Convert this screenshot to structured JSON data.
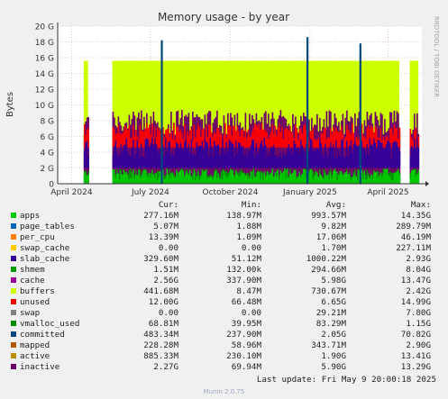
{
  "chart_data": {
    "type": "area",
    "title": "Memory usage - by year",
    "ylabel": "Bytes",
    "side_label": "RRDTOOL / TOBI OETIKER",
    "ylim": [
      0,
      20
    ],
    "y_ticks": [
      {
        "value": 0,
        "label": "0"
      },
      {
        "value": 2,
        "label": "2 G"
      },
      {
        "value": 4,
        "label": "4 G"
      },
      {
        "value": 6,
        "label": "6 G"
      },
      {
        "value": 8,
        "label": "8 G"
      },
      {
        "value": 10,
        "label": "10 G"
      },
      {
        "value": 12,
        "label": "12 G"
      },
      {
        "value": 14,
        "label": "14 G"
      },
      {
        "value": 16,
        "label": "16 G"
      },
      {
        "value": 18,
        "label": "18 G"
      },
      {
        "value": 20,
        "label": "20 G"
      }
    ],
    "x_range": [
      "2024-03-16",
      "2025-05-10"
    ],
    "x_ticks": [
      {
        "date": "2024-04-01",
        "label": "April 2024"
      },
      {
        "date": "2024-07-01",
        "label": "July 2024"
      },
      {
        "date": "2024-10-01",
        "label": "October 2024"
      },
      {
        "date": "2025-01-01",
        "label": "January 2025"
      },
      {
        "date": "2025-04-01",
        "label": "April 2025"
      }
    ],
    "grid": true,
    "series": [
      {
        "name": "apps",
        "color": "#00cc00"
      },
      {
        "name": "page_tables",
        "color": "#0066b3"
      },
      {
        "name": "per_cpu",
        "color": "#ff8000"
      },
      {
        "name": "swap_cache",
        "color": "#ffcc00"
      },
      {
        "name": "slab_cache",
        "color": "#330099"
      },
      {
        "name": "shmem",
        "color": "#009900"
      },
      {
        "name": "cache",
        "color": "#990099"
      },
      {
        "name": "buffers",
        "color": "#ccff00"
      },
      {
        "name": "unused",
        "color": "#ff0000"
      },
      {
        "name": "swap",
        "color": "#808080"
      },
      {
        "name": "vmalloc_used",
        "color": "#008f00"
      },
      {
        "name": "committed",
        "color": "#00487d"
      },
      {
        "name": "mapped",
        "color": "#b35a00"
      },
      {
        "name": "active",
        "color": "#b38f00"
      },
      {
        "name": "inactive",
        "color": "#6b006b"
      }
    ],
    "approx_profile": {
      "gaps": [
        [
          "2024-03-16",
          "2024-04-06"
        ],
        [
          "2024-04-08",
          "2024-04-15"
        ],
        [
          "2024-04-20",
          "2024-05-18"
        ],
        [
          "2025-04-14",
          "2025-04-26"
        ]
      ],
      "unused_top": 15.6,
      "unused_spans": [
        [
          "2024-04-15",
          "2024-04-20"
        ],
        [
          "2024-05-18",
          "2025-04-14"
        ],
        [
          "2025-04-26",
          "2025-05-06"
        ]
      ],
      "committed_peaks": [
        {
          "date": "2024-07-14",
          "value": 18.2
        },
        {
          "date": "2024-12-29",
          "value": 18.6
        },
        {
          "date": "2025-02-28",
          "value": 17.8
        }
      ],
      "slab_typical": 7.8,
      "apps_typical": 1.2
    }
  },
  "legend": {
    "headers": [
      "Cur:",
      "Min:",
      "Avg:",
      "Max:"
    ],
    "rows": [
      {
        "name": "apps",
        "color": "#00cc00",
        "cur": "277.16M",
        "min": "138.97M",
        "avg": "993.57M",
        "max": "14.35G"
      },
      {
        "name": "page_tables",
        "color": "#0066b3",
        "cur": "5.07M",
        "min": "1.88M",
        "avg": "9.82M",
        "max": "289.79M"
      },
      {
        "name": "per_cpu",
        "color": "#ff8000",
        "cur": "13.39M",
        "min": "1.09M",
        "avg": "17.06M",
        "max": "46.19M"
      },
      {
        "name": "swap_cache",
        "color": "#ffcc00",
        "cur": "0.00",
        "min": "0.00",
        "avg": "1.70M",
        "max": "227.11M"
      },
      {
        "name": "slab_cache",
        "color": "#330099",
        "cur": "329.60M",
        "min": "51.12M",
        "avg": "1000.22M",
        "max": "2.93G"
      },
      {
        "name": "shmem",
        "color": "#009900",
        "cur": "1.51M",
        "min": "132.00k",
        "avg": "294.66M",
        "max": "8.04G"
      },
      {
        "name": "cache",
        "color": "#990099",
        "cur": "2.56G",
        "min": "337.90M",
        "avg": "5.98G",
        "max": "13.47G"
      },
      {
        "name": "buffers",
        "color": "#ccff00",
        "cur": "441.68M",
        "min": "8.47M",
        "avg": "730.67M",
        "max": "2.42G"
      },
      {
        "name": "unused",
        "color": "#ff0000",
        "cur": "12.00G",
        "min": "66.48M",
        "avg": "6.65G",
        "max": "14.99G"
      },
      {
        "name": "swap",
        "color": "#808080",
        "cur": "0.00",
        "min": "0.00",
        "avg": "29.21M",
        "max": "7.80G"
      },
      {
        "name": "vmalloc_used",
        "color": "#008f00",
        "cur": "68.81M",
        "min": "39.95M",
        "avg": "83.29M",
        "max": "1.15G"
      },
      {
        "name": "committed",
        "color": "#00487d",
        "cur": "483.34M",
        "min": "237.90M",
        "avg": "2.05G",
        "max": "70.82G"
      },
      {
        "name": "mapped",
        "color": "#b35a00",
        "cur": "228.28M",
        "min": "58.96M",
        "avg": "343.71M",
        "max": "2.90G"
      },
      {
        "name": "active",
        "color": "#b38f00",
        "cur": "885.33M",
        "min": "230.10M",
        "avg": "1.90G",
        "max": "13.41G"
      },
      {
        "name": "inactive",
        "color": "#6b006b",
        "cur": "2.27G",
        "min": "69.94M",
        "avg": "5.90G",
        "max": "13.29G"
      }
    ]
  },
  "last_update": "Last update: Fri May  9 20:00:18 2025",
  "footer": "Munin 2.0.75"
}
